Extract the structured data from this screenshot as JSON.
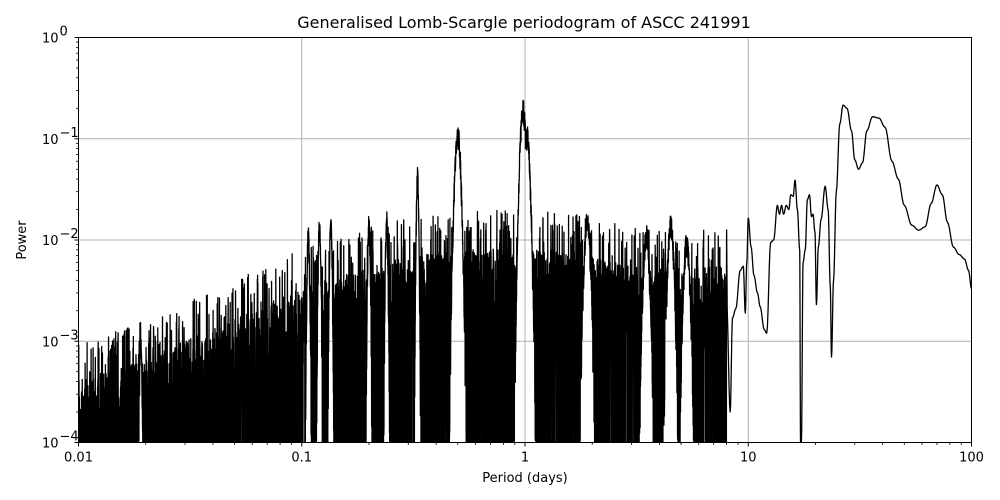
{
  "chart_data": {
    "type": "line",
    "title": "Generalised Lomb-Scargle periodogram of ASCC 241991",
    "xlabel": "Period (days)",
    "ylabel": "Power",
    "xscale": "log",
    "yscale": "log",
    "xlim": [
      0.01,
      100
    ],
    "ylim": [
      0.0001,
      1
    ],
    "grid": true,
    "legend": null,
    "x_ticks": [
      {
        "value": 0.01,
        "label": "0.01"
      },
      {
        "value": 0.1,
        "label": "0.1"
      },
      {
        "value": 1,
        "label": "1"
      },
      {
        "value": 10,
        "label": "10"
      },
      {
        "value": 100,
        "label": "100"
      }
    ],
    "y_ticks": [
      {
        "value": 1,
        "base": "10",
        "exp": "0"
      },
      {
        "value": 0.1,
        "base": "10",
        "exp": "−1"
      },
      {
        "value": 0.01,
        "base": "10",
        "exp": "−2"
      },
      {
        "value": 0.001,
        "base": "10",
        "exp": "−3"
      },
      {
        "value": 0.0001,
        "base": "10",
        "exp": "−4"
      }
    ],
    "line_color": "#000000",
    "grid_color": "#b0b0b0",
    "noise_envelope": [
      {
        "period": 0.01,
        "power": 0.0003
      },
      {
        "period": 0.02,
        "power": 0.0005
      },
      {
        "period": 0.05,
        "power": 0.0012
      },
      {
        "period": 0.1,
        "power": 0.0025
      },
      {
        "period": 0.2,
        "power": 0.004
      },
      {
        "period": 0.3,
        "power": 0.005
      },
      {
        "period": 0.5,
        "power": 0.006
      },
      {
        "period": 0.8,
        "power": 0.006
      },
      {
        "period": 1.5,
        "power": 0.006
      },
      {
        "period": 3,
        "power": 0.004
      }
    ],
    "notable_peaks": [
      {
        "period": 0.019,
        "power": 0.0012
      },
      {
        "period": 0.107,
        "power": 0.0145
      },
      {
        "period": 0.12,
        "power": 0.018
      },
      {
        "period": 0.135,
        "power": 0.019
      },
      {
        "period": 0.2,
        "power": 0.019
      },
      {
        "period": 0.24,
        "power": 0.02
      },
      {
        "period": 0.33,
        "power": 0.052
      },
      {
        "period": 0.5,
        "power": 0.145
      },
      {
        "period": 0.98,
        "power": 0.25
      },
      {
        "period": 1.02,
        "power": 0.14
      },
      {
        "period": 1.9,
        "power": 0.02
      },
      {
        "period": 3.5,
        "power": 0.014
      },
      {
        "period": 4.5,
        "power": 0.018
      },
      {
        "period": 5.3,
        "power": 0.012
      },
      {
        "period": 9.9,
        "power": 0.017
      },
      {
        "period": 16.0,
        "power": 0.041
      },
      {
        "period": 18.7,
        "power": 0.029
      },
      {
        "period": 22.0,
        "power": 0.034
      },
      {
        "period": 26.5,
        "power": 0.215
      },
      {
        "period": 36.0,
        "power": 0.165
      },
      {
        "period": 70.0,
        "power": 0.035
      }
    ],
    "long_period_curve": [
      [
        8.0,
        0.0025
      ],
      [
        8.3,
        0.0002
      ],
      [
        8.5,
        0.0017
      ],
      [
        8.8,
        0.0021
      ],
      [
        9.2,
        0.005
      ],
      [
        9.5,
        0.0055
      ],
      [
        9.7,
        0.0019
      ],
      [
        9.85,
        0.006
      ],
      [
        10.0,
        0.0165
      ],
      [
        10.3,
        0.0085
      ],
      [
        10.6,
        0.0045
      ],
      [
        11.0,
        0.003
      ],
      [
        11.3,
        0.0022
      ],
      [
        11.8,
        0.0013
      ],
      [
        12.1,
        0.0012
      ],
      [
        12.6,
        0.0095
      ],
      [
        13.0,
        0.01
      ],
      [
        13.5,
        0.022
      ],
      [
        13.8,
        0.018
      ],
      [
        14.1,
        0.022
      ],
      [
        14.4,
        0.018
      ],
      [
        14.8,
        0.022
      ],
      [
        15.2,
        0.02
      ],
      [
        15.5,
        0.028
      ],
      [
        15.9,
        0.027
      ],
      [
        16.2,
        0.039
      ],
      [
        16.6,
        0.02
      ],
      [
        17.0,
        0.008
      ],
      [
        17.15,
        0.0001
      ],
      [
        17.3,
        0.0001
      ],
      [
        17.6,
        0.006
      ],
      [
        18.0,
        0.008
      ],
      [
        18.4,
        0.025
      ],
      [
        18.8,
        0.028
      ],
      [
        19.2,
        0.017
      ],
      [
        19.5,
        0.018
      ],
      [
        19.9,
        0.012
      ],
      [
        20.2,
        0.0023
      ],
      [
        20.6,
        0.0085
      ],
      [
        21.2,
        0.016
      ],
      [
        22.1,
        0.034
      ],
      [
        22.8,
        0.02
      ],
      [
        23.3,
        0.0035
      ],
      [
        23.6,
        0.0007
      ],
      [
        24.1,
        0.004
      ],
      [
        24.8,
        0.03
      ],
      [
        25.7,
        0.14
      ],
      [
        26.6,
        0.215
      ],
      [
        27.7,
        0.2
      ],
      [
        29.0,
        0.12
      ],
      [
        30.0,
        0.062
      ],
      [
        31.2,
        0.05
      ],
      [
        32.5,
        0.058
      ],
      [
        34.0,
        0.12
      ],
      [
        36.0,
        0.165
      ],
      [
        38.5,
        0.16
      ],
      [
        41.0,
        0.13
      ],
      [
        44.0,
        0.06
      ],
      [
        47.0,
        0.04
      ],
      [
        50.0,
        0.022
      ],
      [
        54.0,
        0.014
      ],
      [
        58.0,
        0.0125
      ],
      [
        62.0,
        0.0135
      ],
      [
        66.0,
        0.023
      ],
      [
        70.0,
        0.035
      ],
      [
        74.0,
        0.028
      ],
      [
        78.0,
        0.015
      ],
      [
        83.0,
        0.0085
      ],
      [
        88.0,
        0.0072
      ],
      [
        93.0,
        0.0065
      ],
      [
        97.0,
        0.005
      ],
      [
        100.0,
        0.0033
      ]
    ]
  }
}
